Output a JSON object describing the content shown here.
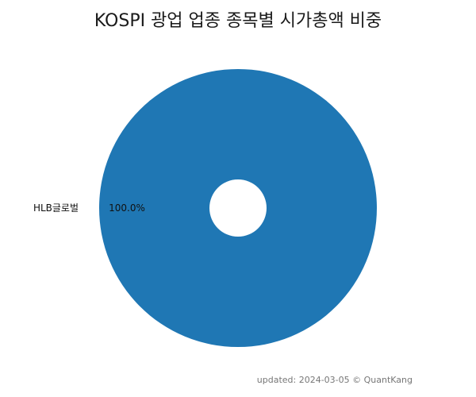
{
  "chart_data": {
    "type": "pie",
    "title": "KOSPI 광업 업종 종목별 시가총액 비중",
    "categories": [
      "HLB글로벌"
    ],
    "values": [
      100.0
    ],
    "percent_labels": [
      "100.0%"
    ],
    "donut": true,
    "colors": [
      "#1f77b4"
    ],
    "legend": "none"
  },
  "footer": {
    "text": "updated: 2024-03-05 © QuantKang"
  }
}
